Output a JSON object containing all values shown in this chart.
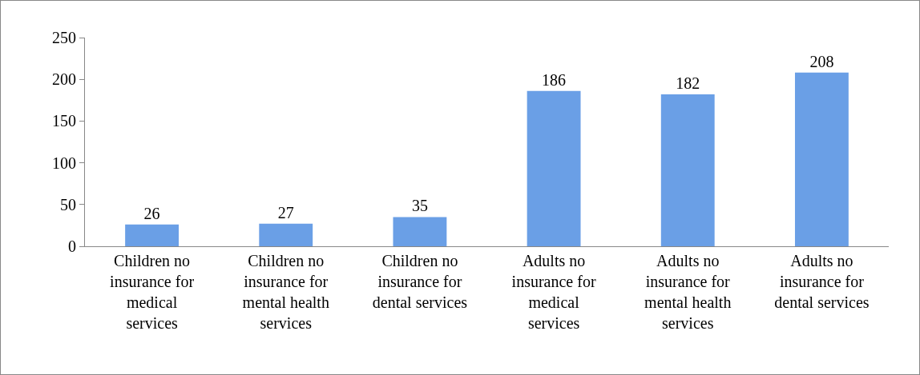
{
  "chart_data": {
    "type": "bar",
    "categories": [
      "Children no insurance for medical services",
      "Children no insurance for mental health services",
      "Children no insurance for dental services",
      "Adults no insurance for medical services",
      "Adults no insurance for mental health services",
      "Adults no insurance for dental services"
    ],
    "values": [
      26,
      27,
      35,
      186,
      182,
      208
    ],
    "color": "#6a9fe6",
    "ylim": [
      0,
      250
    ],
    "yticks": [
      0,
      50,
      100,
      150,
      200,
      250
    ],
    "grid": false,
    "legend": false,
    "data_labels": true
  }
}
